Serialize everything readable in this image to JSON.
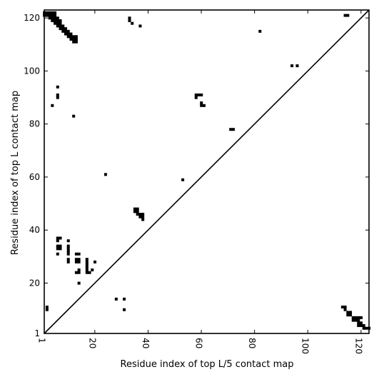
{
  "chart_data": {
    "type": "heatmap",
    "title": "",
    "xlabel": "Residue index of top L/5 contact map",
    "ylabel": "Residue index of top L contact map",
    "xlim": [
      1,
      123
    ],
    "ylim": [
      1,
      123
    ],
    "xticks": [
      1,
      20,
      40,
      60,
      80,
      100,
      120
    ],
    "yticks": [
      1,
      20,
      40,
      60,
      80,
      100,
      120
    ],
    "xtick_labels": [
      "1",
      "20",
      "40",
      "60",
      "80",
      "100",
      "120"
    ],
    "ytick_labels": [
      "1",
      "20",
      "40",
      "60",
      "80",
      "100",
      "120"
    ],
    "diagonal": true,
    "cell_color": "#000000",
    "grid": false,
    "cells_upper_left": [
      [
        1,
        122
      ],
      [
        2,
        122
      ],
      [
        3,
        122
      ],
      [
        4,
        122
      ],
      [
        5,
        122
      ],
      [
        1,
        121
      ],
      [
        2,
        121
      ],
      [
        3,
        121
      ],
      [
        4,
        121
      ],
      [
        5,
        121
      ],
      [
        3,
        120
      ],
      [
        4,
        120
      ],
      [
        5,
        120
      ],
      [
        6,
        120
      ],
      [
        4,
        119
      ],
      [
        5,
        119
      ],
      [
        6,
        119
      ],
      [
        7,
        119
      ],
      [
        5,
        118
      ],
      [
        6,
        118
      ],
      [
        7,
        118
      ],
      [
        6,
        117
      ],
      [
        7,
        117
      ],
      [
        8,
        117
      ],
      [
        7,
        116
      ],
      [
        8,
        116
      ],
      [
        9,
        116
      ],
      [
        8,
        115
      ],
      [
        9,
        115
      ],
      [
        10,
        115
      ],
      [
        9,
        114
      ],
      [
        10,
        114
      ],
      [
        11,
        114
      ],
      [
        10,
        113
      ],
      [
        11,
        113
      ],
      [
        12,
        113
      ],
      [
        13,
        113
      ],
      [
        11,
        112
      ],
      [
        12,
        112
      ],
      [
        13,
        112
      ],
      [
        12,
        111
      ],
      [
        13,
        111
      ],
      [
        33,
        120
      ],
      [
        33,
        119
      ],
      [
        34,
        118
      ],
      [
        37,
        117
      ],
      [
        82,
        115
      ],
      [
        94,
        102
      ],
      [
        96,
        102
      ],
      [
        6,
        94
      ],
      [
        6,
        91
      ],
      [
        6,
        90
      ],
      [
        4,
        87
      ],
      [
        12,
        83
      ],
      [
        58,
        91
      ],
      [
        59,
        91
      ],
      [
        60,
        91
      ],
      [
        58,
        90
      ],
      [
        60,
        88
      ],
      [
        60,
        87
      ],
      [
        61,
        87
      ],
      [
        71,
        78
      ],
      [
        72,
        78
      ],
      [
        24,
        61
      ],
      [
        53,
        59
      ],
      [
        35,
        48
      ],
      [
        36,
        48
      ],
      [
        35,
        47
      ],
      [
        36,
        47
      ],
      [
        36,
        46
      ],
      [
        37,
        46
      ],
      [
        38,
        46
      ],
      [
        37,
        45
      ],
      [
        38,
        45
      ],
      [
        38,
        44
      ],
      [
        6,
        37
      ],
      [
        7,
        37
      ],
      [
        6,
        36
      ],
      [
        10,
        36
      ],
      [
        6,
        34
      ],
      [
        7,
        34
      ],
      [
        10,
        34
      ],
      [
        6,
        33
      ],
      [
        7,
        33
      ],
      [
        10,
        33
      ],
      [
        10,
        32
      ],
      [
        6,
        31
      ],
      [
        10,
        31
      ],
      [
        13,
        31
      ],
      [
        14,
        31
      ],
      [
        10,
        29
      ],
      [
        13,
        29
      ],
      [
        14,
        29
      ],
      [
        17,
        29
      ],
      [
        10,
        28
      ],
      [
        13,
        28
      ],
      [
        14,
        28
      ],
      [
        17,
        28
      ],
      [
        20,
        28
      ],
      [
        17,
        27
      ],
      [
        17,
        26
      ],
      [
        14,
        25
      ],
      [
        17,
        25
      ],
      [
        19,
        25
      ],
      [
        13,
        24
      ],
      [
        14,
        24
      ],
      [
        17,
        24
      ],
      [
        18,
        24
      ],
      [
        14,
        20
      ],
      [
        28,
        14
      ],
      [
        31,
        14
      ],
      [
        31,
        10
      ],
      [
        2,
        11
      ],
      [
        2,
        10
      ]
    ],
    "cells_lower_right": [
      [
        114,
        121
      ],
      [
        115,
        121
      ],
      [
        113,
        11
      ],
      [
        114,
        11
      ],
      [
        114,
        10
      ],
      [
        115,
        9
      ],
      [
        116,
        9
      ],
      [
        115,
        8
      ],
      [
        116,
        8
      ],
      [
        117,
        7
      ],
      [
        118,
        7
      ],
      [
        119,
        7
      ],
      [
        120,
        7
      ],
      [
        117,
        6
      ],
      [
        118,
        6
      ],
      [
        119,
        6
      ],
      [
        119,
        5
      ],
      [
        120,
        5
      ],
      [
        119,
        4
      ],
      [
        120,
        4
      ],
      [
        121,
        4
      ],
      [
        121,
        3
      ],
      [
        122,
        3
      ],
      [
        123,
        3
      ]
    ]
  }
}
